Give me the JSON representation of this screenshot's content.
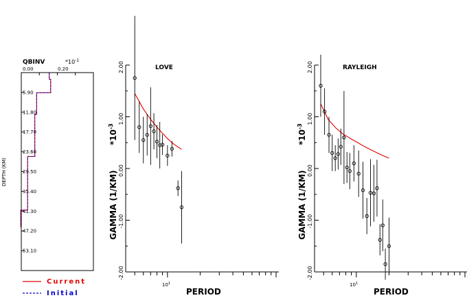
{
  "chart_data": [
    {
      "type": "line",
      "title": "QBINV",
      "x_multiplier": "*10^-1",
      "x_ticks": [
        "0.00",
        "0.20"
      ],
      "xlim": [
        0,
        0.4
      ],
      "ylabel": "DEPTH (KM)",
      "y_ticks": [
        "5.90",
        "11.80",
        "17.70",
        "23.60",
        "29.50",
        "35.40",
        "41.30",
        "47.20",
        "53.10"
      ],
      "ylim": [
        0,
        59
      ],
      "series": [
        {
          "name": "Current",
          "color": "#e00000",
          "steps": [
            {
              "depth_top": 0,
              "depth_bottom": 2.0,
              "value": 0.155
            },
            {
              "depth_top": 2.0,
              "depth_bottom": 6.0,
              "value": 0.163
            },
            {
              "depth_top": 6.0,
              "depth_bottom": 12.5,
              "value": 0.085
            },
            {
              "depth_top": 12.5,
              "depth_bottom": 25.0,
              "value": 0.075
            },
            {
              "depth_top": 25.0,
              "depth_bottom": 41.0,
              "value": 0.035
            },
            {
              "depth_top": 41.0,
              "depth_bottom": 46.0,
              "value": -0.003
            }
          ]
        },
        {
          "name": "Initial",
          "color": "#0000d0",
          "steps": [
            {
              "depth_top": 0,
              "depth_bottom": 2.0,
              "value": 0.155
            },
            {
              "depth_top": 2.0,
              "depth_bottom": 6.0,
              "value": 0.163
            },
            {
              "depth_top": 6.0,
              "depth_bottom": 12.5,
              "value": 0.085
            },
            {
              "depth_top": 12.5,
              "depth_bottom": 25.0,
              "value": 0.075
            },
            {
              "depth_top": 25.0,
              "depth_bottom": 41.0,
              "value": 0.035
            },
            {
              "depth_top": 41.0,
              "depth_bottom": 46.0,
              "value": -0.003
            }
          ]
        }
      ],
      "legend": [
        {
          "label": "Current",
          "color": "#e00000",
          "dashed": false
        },
        {
          "label": "Initial",
          "color": "#0000d0",
          "dashed": true
        }
      ]
    },
    {
      "type": "scatter",
      "title": "LOVE",
      "xlabel": "PERIOD",
      "ylabel": "GAMMA (1/KM)",
      "y_multiplier": "*10^-3",
      "x_scale": "log",
      "xlim": [
        4.5,
        100
      ],
      "x_tick_label": "10",
      "x_tick_label_exp": "1",
      "ylim": [
        -2.0,
        2.0
      ],
      "y_ticks": [
        "2.00",
        "1.00",
        "0.00",
        "-1.00",
        "-2.00"
      ],
      "observed": [
        {
          "period": 5.0,
          "gamma": 1.75,
          "err": 1.2
        },
        {
          "period": 5.5,
          "gamma": 0.8,
          "err": 0.5
        },
        {
          "period": 6.0,
          "gamma": 0.55,
          "err": 0.45
        },
        {
          "period": 6.5,
          "gamma": 0.65,
          "err": 0.4
        },
        {
          "period": 7.0,
          "gamma": 0.82,
          "err": 0.75
        },
        {
          "period": 7.5,
          "gamma": 0.72,
          "err": 0.35
        },
        {
          "period": 8.0,
          "gamma": 0.52,
          "err": 0.32
        },
        {
          "period": 8.5,
          "gamma": 0.45,
          "err": 0.45
        },
        {
          "period": 9.0,
          "gamma": 0.46,
          "err": 0.2
        },
        {
          "period": 10.0,
          "gamma": 0.25,
          "err": 0.2
        },
        {
          "period": 11.0,
          "gamma": 0.38,
          "err": 0.15
        },
        {
          "period": 12.5,
          "gamma": -0.38,
          "err": 0.15
        },
        {
          "period": 13.5,
          "gamma": -0.75,
          "err": 0.7
        }
      ],
      "fit_curve": {
        "color": "#e00000",
        "x": [
          5.0,
          6.0,
          7.0,
          8.0,
          9.0,
          10.0,
          11.0,
          12.0,
          13.5
        ],
        "y": [
          1.45,
          1.15,
          0.95,
          0.8,
          0.68,
          0.58,
          0.5,
          0.44,
          0.37
        ]
      }
    },
    {
      "type": "scatter",
      "title": "RAYLEIGH",
      "xlabel": "PERIOD",
      "ylabel": "GAMMA (1/KM)",
      "y_multiplier": "*10^-3",
      "x_scale": "log",
      "xlim": [
        4.5,
        100
      ],
      "x_tick_label": "10",
      "x_tick_label_exp": "1",
      "ylim": [
        -2.0,
        2.0
      ],
      "y_ticks": [
        "2.00",
        "1.00",
        "0.00",
        "-1.00",
        "-2.00"
      ],
      "observed": [
        {
          "period": 4.7,
          "gamma": 1.6,
          "err": 0.6
        },
        {
          "period": 5.1,
          "gamma": 1.1,
          "err": 0.45
        },
        {
          "period": 5.6,
          "gamma": 0.65,
          "err": 0.35
        },
        {
          "period": 6.0,
          "gamma": 0.3,
          "err": 0.35
        },
        {
          "period": 6.4,
          "gamma": 0.2,
          "err": 0.25
        },
        {
          "period": 6.8,
          "gamma": 0.28,
          "err": 0.3
        },
        {
          "period": 7.2,
          "gamma": 0.42,
          "err": 0.35
        },
        {
          "period": 7.7,
          "gamma": 0.6,
          "err": 0.9
        },
        {
          "period": 8.2,
          "gamma": 0.02,
          "err": 0.3
        },
        {
          "period": 8.7,
          "gamma": -0.05,
          "err": 0.35
        },
        {
          "period": 9.5,
          "gamma": 0.1,
          "err": 0.35
        },
        {
          "period": 10.5,
          "gamma": -0.1,
          "err": 0.45
        },
        {
          "period": 11.5,
          "gamma": -0.42,
          "err": 0.55
        },
        {
          "period": 12.5,
          "gamma": -0.92,
          "err": 0.35
        },
        {
          "period": 13.5,
          "gamma": -0.47,
          "err": 0.65
        },
        {
          "period": 14.5,
          "gamma": -0.48,
          "err": 0.55
        },
        {
          "period": 15.5,
          "gamma": -0.38,
          "err": 0.55
        },
        {
          "period": 16.5,
          "gamma": -1.38,
          "err": 0.3
        },
        {
          "period": 17.5,
          "gamma": -1.1,
          "err": 0.5
        },
        {
          "period": 18.5,
          "gamma": -1.85,
          "err": 0.3
        },
        {
          "period": 20.0,
          "gamma": -1.5,
          "err": 0.55
        }
      ],
      "fit_curve": {
        "color": "#e00000",
        "x": [
          4.7,
          5.5,
          6.5,
          7.5,
          9.0,
          10.5,
          12.0,
          14.0,
          16.0,
          18.0,
          20.0
        ],
        "y": [
          1.25,
          0.95,
          0.78,
          0.67,
          0.57,
          0.49,
          0.42,
          0.35,
          0.29,
          0.24,
          0.2
        ]
      }
    }
  ]
}
